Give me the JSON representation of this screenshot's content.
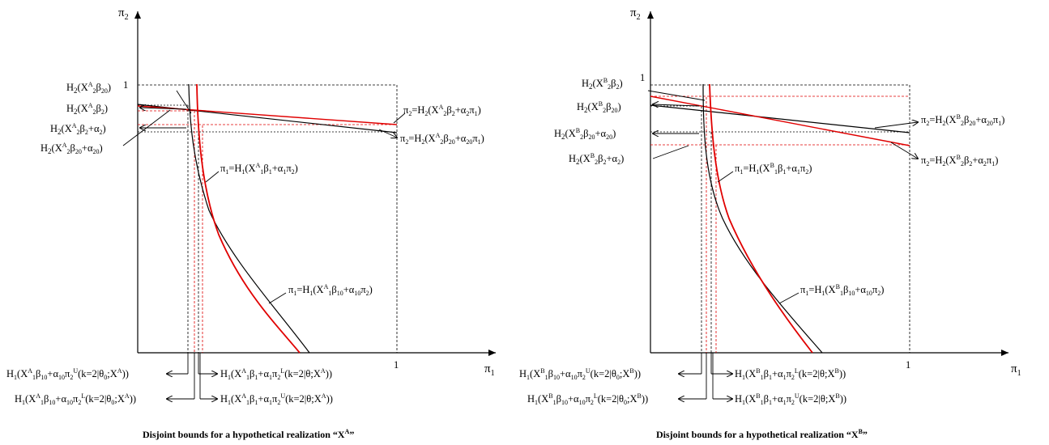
{
  "panels": [
    {
      "id": "A",
      "axis_labels": {
        "y": "π2",
        "x": "π1"
      },
      "tick_one_y": "1",
      "tick_one_x": "1",
      "left_labels": [
        {
          "text": "H2(XA2β20)"
        },
        {
          "text": "H2(XA2β2)"
        },
        {
          "text": "H2(XA2β2+α2)"
        },
        {
          "text": "H2(XA2β20+α20)"
        }
      ],
      "right_labels": [
        {
          "text": "π2=H2(XA2β2+α2π1)"
        },
        {
          "text": "π2=H2(XA2β20+α20π1)"
        },
        {
          "text": "π1=H1(XA1β1+α1π2)"
        },
        {
          "text": "π1=H1(XA1β10+α10π2)"
        }
      ],
      "bottom_labels": [
        {
          "text": "H1(XA1β10+α10π2U(k=2|θ0;XA))"
        },
        {
          "text": "H1(XA1β1+α1π2L(k=2|θ;XA))"
        },
        {
          "text": "H1(XA1β10+α10π2L(k=2|θ0;XA))"
        },
        {
          "text": "H1(XA1β1+α1π2U(k=2|θ;XA))"
        }
      ],
      "caption": "Disjoint bounds for a hypothetical realization  “XA”"
    },
    {
      "id": "B",
      "axis_labels": {
        "y": "π2",
        "x": "π1"
      },
      "tick_one_y": "1",
      "tick_one_x": "1",
      "left_labels": [
        {
          "text": "H2(XB2β2)"
        },
        {
          "text": "H2(XB2β20)"
        },
        {
          "text": "H2(XB2β20+α20)"
        },
        {
          "text": "H2(XB2β2+α2)"
        }
      ],
      "right_labels": [
        {
          "text": "π2=H2(XB2β20+α20π1)"
        },
        {
          "text": "π2=H2(XB2β2+α2π1)"
        },
        {
          "text": "π1=H1(XB1β1+α1π2)"
        },
        {
          "text": "π1=H1(XB1β10+α10π2)"
        }
      ],
      "bottom_labels": [
        {
          "text": "H1(XB1β10+α10π2U(k=2|θ0;XB))"
        },
        {
          "text": "H1(XB1β1+α1π2L(k=2|θ;XB))"
        },
        {
          "text": "H1(XB1β10+α10π2L(k=2|θ0;XB))"
        },
        {
          "text": "H1(XB1β1+α1π2U(k=2|θ;XB))"
        }
      ],
      "caption": "Disjoint bounds for a hypothetical realization  “XB”"
    }
  ],
  "colors": {
    "black_curve": "#000000",
    "red_curve": "#e00000"
  }
}
